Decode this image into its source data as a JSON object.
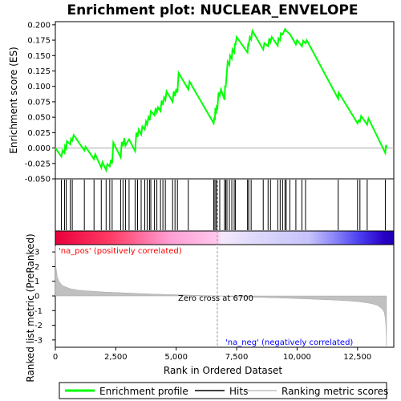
{
  "chart_data": {
    "type": "line",
    "title": "Enrichment plot: NUCLEAR_ENVELOPE",
    "xlabel": "Rank in Ordered Dataset",
    "ylabel_top": "Enrichment score (ES)",
    "ylabel_bottom": "Ranked list metric (PreRanked)",
    "xlim": [
      0,
      14000
    ],
    "es_ylim": [
      -0.05,
      0.205
    ],
    "metric_ylim": [
      -3.5,
      3.5
    ],
    "x_ticks": [
      0,
      2500,
      5000,
      7500,
      10000,
      12500
    ],
    "x_tick_labels": [
      "0",
      "2,500",
      "5,000",
      "7,500",
      "10,000",
      "12,500"
    ],
    "es_ticks": [
      -0.05,
      -0.025,
      0.0,
      0.025,
      0.05,
      0.075,
      0.1,
      0.125,
      0.15,
      0.175,
      0.2
    ],
    "es_tick_labels": [
      "-0.050",
      "-0.025",
      "0.000",
      "0.025",
      "0.050",
      "0.075",
      "0.100",
      "0.125",
      "0.150",
      "0.175",
      "0.200"
    ],
    "metric_ticks": [
      3,
      2,
      1,
      0,
      -1,
      -2,
      -3
    ],
    "metric_tick_labels": [
      "3",
      "2",
      "1",
      "0",
      "-1",
      "-2",
      "-3"
    ],
    "zero_cross": 6700,
    "zero_cross_label": "Zero cross at 6700",
    "pos_label": "'na_pos' (positively correlated)",
    "neg_label": "'na_neg' (negatively correlated)",
    "n_genes": 13700,
    "hits": [
      250,
      380,
      450,
      620,
      700,
      1200,
      1600,
      1900,
      2100,
      2250,
      2350,
      2700,
      2800,
      2900,
      3050,
      3300,
      3400,
      3550,
      3700,
      3800,
      3900,
      3950,
      4100,
      4200,
      4350,
      4450,
      4550,
      4850,
      4950,
      5050,
      5500,
      6550,
      6600,
      6650,
      6700,
      6800,
      7000,
      7050,
      7100,
      7200,
      7300,
      7400,
      7450,
      7950,
      8000,
      8100,
      8600,
      8800,
      8900,
      9200,
      9300,
      9400,
      9500,
      9550,
      9700,
      9950,
      10200,
      10350,
      11700,
      12500,
      12600,
      12900,
      13650
    ],
    "es_curve": [
      [
        0,
        0.0
      ],
      [
        250,
        -0.014
      ],
      [
        300,
        -0.004
      ],
      [
        380,
        -0.008
      ],
      [
        400,
        0.003
      ],
      [
        450,
        -0.001
      ],
      [
        480,
        0.011
      ],
      [
        620,
        0.006
      ],
      [
        650,
        0.015
      ],
      [
        700,
        0.012
      ],
      [
        760,
        0.021
      ],
      [
        1200,
        -0.004
      ],
      [
        1250,
        0.002
      ],
      [
        1600,
        -0.018
      ],
      [
        1650,
        -0.01
      ],
      [
        1900,
        -0.032
      ],
      [
        1950,
        -0.023
      ],
      [
        2100,
        -0.036
      ],
      [
        2150,
        -0.026
      ],
      [
        2250,
        -0.03
      ],
      [
        2300,
        -0.019
      ],
      [
        2350,
        -0.025
      ],
      [
        2400,
        0.009
      ],
      [
        2700,
        -0.015
      ],
      [
        2750,
        0.01
      ],
      [
        2800,
        0.003
      ],
      [
        2850,
        0.016
      ],
      [
        2900,
        0.004
      ],
      [
        3050,
        0.014
      ],
      [
        3300,
        -0.005
      ],
      [
        3350,
        0.025
      ],
      [
        3400,
        0.018
      ],
      [
        3450,
        0.03
      ],
      [
        3550,
        0.022
      ],
      [
        3600,
        0.035
      ],
      [
        3700,
        0.03
      ],
      [
        3750,
        0.043
      ],
      [
        3800,
        0.038
      ],
      [
        3850,
        0.05
      ],
      [
        3900,
        0.045
      ],
      [
        3950,
        0.06
      ],
      [
        4100,
        0.053
      ],
      [
        4150,
        0.065
      ],
      [
        4200,
        0.058
      ],
      [
        4250,
        0.066
      ],
      [
        4350,
        0.06
      ],
      [
        4400,
        0.077
      ],
      [
        4450,
        0.07
      ],
      [
        4500,
        0.082
      ],
      [
        4550,
        0.078
      ],
      [
        4600,
        0.092
      ],
      [
        4850,
        0.075
      ],
      [
        4900,
        0.092
      ],
      [
        4950,
        0.084
      ],
      [
        5000,
        0.096
      ],
      [
        5050,
        0.09
      ],
      [
        5100,
        0.122
      ],
      [
        5500,
        0.095
      ],
      [
        5550,
        0.108
      ],
      [
        6550,
        0.04
      ],
      [
        6580,
        0.05
      ],
      [
        6600,
        0.045
      ],
      [
        6620,
        0.065
      ],
      [
        6650,
        0.055
      ],
      [
        6680,
        0.07
      ],
      [
        6700,
        0.062
      ],
      [
        6750,
        0.09
      ],
      [
        6800,
        0.085
      ],
      [
        6850,
        0.095
      ],
      [
        7000,
        0.078
      ],
      [
        7020,
        0.1
      ],
      [
        7050,
        0.1
      ],
      [
        7080,
        0.115
      ],
      [
        7100,
        0.125
      ],
      [
        7130,
        0.14
      ],
      [
        7200,
        0.135
      ],
      [
        7230,
        0.15
      ],
      [
        7300,
        0.145
      ],
      [
        7330,
        0.16
      ],
      [
        7400,
        0.155
      ],
      [
        7430,
        0.17
      ],
      [
        7450,
        0.167
      ],
      [
        7500,
        0.18
      ],
      [
        7950,
        0.155
      ],
      [
        7980,
        0.17
      ],
      [
        8000,
        0.168
      ],
      [
        8050,
        0.18
      ],
      [
        8100,
        0.176
      ],
      [
        8150,
        0.19
      ],
      [
        8600,
        0.16
      ],
      [
        8650,
        0.17
      ],
      [
        8800,
        0.165
      ],
      [
        8850,
        0.178
      ],
      [
        8900,
        0.172
      ],
      [
        8950,
        0.18
      ],
      [
        9200,
        0.166
      ],
      [
        9230,
        0.178
      ],
      [
        9300,
        0.175
      ],
      [
        9330,
        0.186
      ],
      [
        9400,
        0.184
      ],
      [
        9500,
        0.193
      ],
      [
        9550,
        0.19
      ],
      [
        9700,
        0.185
      ],
      [
        9950,
        0.168
      ],
      [
        10000,
        0.175
      ],
      [
        10200,
        0.165
      ],
      [
        10250,
        0.174
      ],
      [
        10350,
        0.17
      ],
      [
        10400,
        0.175
      ],
      [
        11700,
        0.08
      ],
      [
        11720,
        0.09
      ],
      [
        12500,
        0.04
      ],
      [
        12550,
        0.045
      ],
      [
        12600,
        0.043
      ],
      [
        12650,
        0.052
      ],
      [
        12900,
        0.038
      ],
      [
        12950,
        0.048
      ],
      [
        13650,
        -0.008
      ],
      [
        13680,
        0.005
      ],
      [
        13700,
        0.0
      ]
    ],
    "metric_curve": [
      [
        0,
        3.4
      ],
      [
        30,
        1.9
      ],
      [
        80,
        1.3
      ],
      [
        150,
        1.0
      ],
      [
        300,
        0.7
      ],
      [
        600,
        0.5
      ],
      [
        1000,
        0.38
      ],
      [
        2000,
        0.27
      ],
      [
        3000,
        0.2
      ],
      [
        4000,
        0.13
      ],
      [
        5000,
        0.08
      ],
      [
        6000,
        0.03
      ],
      [
        6700,
        0.0
      ],
      [
        7500,
        -0.05
      ],
      [
        8500,
        -0.1
      ],
      [
        9500,
        -0.15
      ],
      [
        10500,
        -0.21
      ],
      [
        11500,
        -0.28
      ],
      [
        12000,
        -0.32
      ],
      [
        12500,
        -0.38
      ],
      [
        13000,
        -0.5
      ],
      [
        13300,
        -0.62
      ],
      [
        13500,
        -0.85
      ],
      [
        13600,
        -1.1
      ],
      [
        13650,
        -1.5
      ],
      [
        13680,
        -2.2
      ],
      [
        13700,
        -3.4
      ]
    ],
    "legend": [
      "Enrichment profile",
      "Hits",
      "Ranking metric scores"
    ],
    "colors": {
      "es_line": "#00ff00",
      "hit": "#000000",
      "metric_fill": "#c0c0c0",
      "pos_text": "#ff0000",
      "neg_text": "#0000ff",
      "zero_line": "#999999"
    }
  }
}
